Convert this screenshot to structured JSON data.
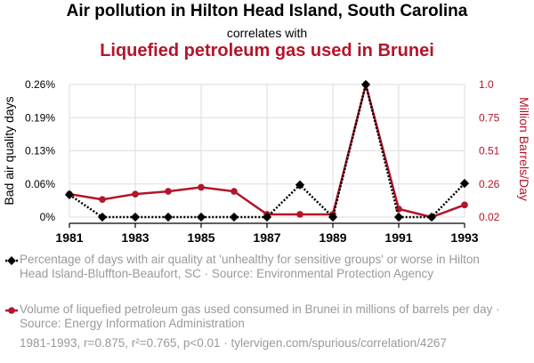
{
  "header": {
    "title_main": "Air pollution in Hilton Head Island, South Carolina",
    "title_connector": "correlates with",
    "title_secondary": "Liquefied petroleum gas used in Brunei"
  },
  "colors": {
    "series1": "#000000",
    "series2": "#b4152b",
    "grid": "#dddddd",
    "muted_text": "#9a9a9a"
  },
  "chart_data": {
    "type": "line",
    "x": [
      1981,
      1982,
      1983,
      1984,
      1985,
      1986,
      1987,
      1988,
      1989,
      1990,
      1991,
      1992,
      1993
    ],
    "x_tick_labels": [
      "1981",
      "1983",
      "1985",
      "1987",
      "1989",
      "1991",
      "1993"
    ],
    "x_ticks": [
      1981,
      1983,
      1985,
      1987,
      1989,
      1991,
      1993
    ],
    "xlim": [
      1981,
      1993
    ],
    "left_axis": {
      "label": "Bad air quality days",
      "ylim": [
        0,
        0.26
      ],
      "ticks": [
        0,
        0.065,
        0.13,
        0.195,
        0.26
      ],
      "tick_labels": [
        "0%",
        "0.06%",
        "0.13%",
        "0.19%",
        "0.26%"
      ]
    },
    "right_axis": {
      "label": "Million Barrels/Day",
      "ylim": [
        0.02,
        1.0
      ],
      "ticks": [
        0.02,
        0.265,
        0.51,
        0.755,
        1.0
      ],
      "tick_labels": [
        "0.02",
        "0.26",
        "0.51",
        "0.75",
        "1.0"
      ]
    },
    "grid": true,
    "series": [
      {
        "legend": "Percentage of days with air quality at 'unhealthy for sensitive groups' or worse in Hilton Head Island-Bluffton-Beaufort, SC · Source: Environmental Protection Agency",
        "axis": "left",
        "style": "dotted",
        "marker": "diamond",
        "values": [
          0.0438,
          0,
          0,
          0,
          0,
          0,
          0,
          0.0632,
          0,
          0.26,
          0,
          0,
          0.0661
        ]
      },
      {
        "legend": "Volume of liquefied petroleum gas used consumed in Brunei in millions of barrels per day · Source: Energy Information Administration",
        "axis": "right",
        "style": "solid",
        "marker": "circle",
        "values": [
          0.19,
          0.15,
          0.19,
          0.21,
          0.24,
          0.21,
          0.04,
          0.04,
          0.04,
          1.0,
          0.08,
          0.02,
          0.11
        ]
      }
    ]
  },
  "footer": {
    "stats": "1981-1993, r=0.875, r²=0.765, p<0.01 · tylervigen.com/spurious/correlation/4267"
  }
}
